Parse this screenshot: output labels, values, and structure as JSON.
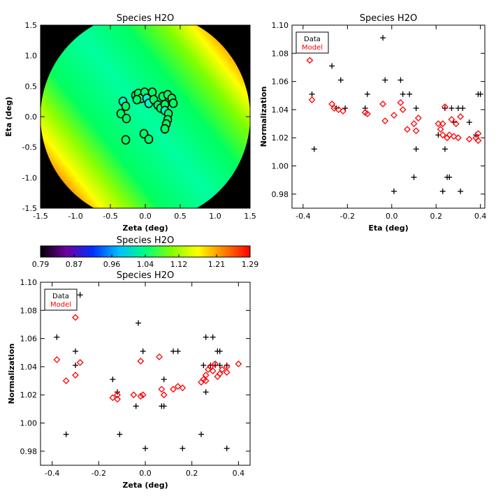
{
  "chart_data": [
    {
      "type": "heatmap",
      "title": "Species H2O",
      "xlabel": "Zeta (deg)",
      "ylabel": "Eta (deg)",
      "xlim": [
        -1.5,
        1.5
      ],
      "ylim": [
        -1.5,
        1.5
      ],
      "xticks": [
        "-1.5",
        "-1.0",
        "-0.5",
        "0.0",
        "0.5",
        "1.0",
        "1.5"
      ],
      "yticks": [
        "-1.5",
        "-1.0",
        "-0.5",
        "0.0",
        "0.5",
        "1.0",
        "1.5"
      ],
      "map_description": "circular map of radius 1.5 deg, green centre, red toward upper-right and lower-left edges",
      "points": [
        {
          "x": -0.32,
          "y": 0.25,
          "fill": "#00ffcc"
        },
        {
          "x": -0.28,
          "y": 0.17,
          "fill": "#00ff66"
        },
        {
          "x": -0.35,
          "y": 0.05,
          "fill": "#00ff66"
        },
        {
          "x": -0.27,
          "y": -0.03,
          "fill": "#00ff66"
        },
        {
          "x": -0.28,
          "y": -0.38,
          "fill": "#00ff66"
        },
        {
          "x": -0.14,
          "y": 0.35,
          "fill": "#00ff66"
        },
        {
          "x": -0.1,
          "y": 0.38,
          "fill": "#00ff66"
        },
        {
          "x": -0.06,
          "y": 0.3,
          "fill": "#00ffcc"
        },
        {
          "x": -0.12,
          "y": 0.28,
          "fill": "#00ff66"
        },
        {
          "x": -0.01,
          "y": 0.4,
          "fill": "#00ff66"
        },
        {
          "x": 0.02,
          "y": 0.3,
          "fill": "#00ffcc"
        },
        {
          "x": 0.05,
          "y": 0.22,
          "fill": "#00ffcc"
        },
        {
          "x": 0.1,
          "y": 0.4,
          "fill": "#00ff66"
        },
        {
          "x": 0.12,
          "y": 0.28,
          "fill": "#00ff66"
        },
        {
          "x": 0.18,
          "y": 0.19,
          "fill": "#00ff66"
        },
        {
          "x": 0.22,
          "y": 0.14,
          "fill": "#00ff66"
        },
        {
          "x": 0.25,
          "y": 0.33,
          "fill": "#00ff66"
        },
        {
          "x": 0.28,
          "y": 0.2,
          "fill": "#00ff66"
        },
        {
          "x": 0.32,
          "y": 0.36,
          "fill": "#00ff66"
        },
        {
          "x": 0.38,
          "y": 0.3,
          "fill": "#00ff66"
        },
        {
          "x": 0.4,
          "y": 0.22,
          "fill": "#00ff66"
        },
        {
          "x": 0.28,
          "y": 0.1,
          "fill": "#00ffcc"
        },
        {
          "x": 0.33,
          "y": 0.05,
          "fill": "#00ff66"
        },
        {
          "x": 0.32,
          "y": -0.05,
          "fill": "#00ff66"
        },
        {
          "x": 0.3,
          "y": -0.12,
          "fill": "#00ff66"
        },
        {
          "x": 0.28,
          "y": -0.2,
          "fill": "#00ff66"
        },
        {
          "x": -0.02,
          "y": -0.28,
          "fill": "#00ff66"
        },
        {
          "x": 0.05,
          "y": -0.37,
          "fill": "#00ff66"
        }
      ]
    },
    {
      "type": "colorbar",
      "title": "Species H2O",
      "range": [
        0.79,
        1.29
      ],
      "ticks": [
        "0.79",
        "0.87",
        "0.96",
        "1.04",
        "1.12",
        "1.21",
        "1.29"
      ],
      "colors": [
        "#000000",
        "#7000a0",
        "#0030ff",
        "#00c0ff",
        "#00ff80",
        "#80ff00",
        "#ffff00",
        "#ff8000",
        "#ff0000"
      ]
    },
    {
      "type": "scatter",
      "title": "Species H2O",
      "xlabel": "Eta (deg)",
      "ylabel": "Normalization",
      "xlim": [
        -0.45,
        0.42
      ],
      "ylim": [
        0.97,
        1.1
      ],
      "xticks": [
        "-0.4",
        "-0.2",
        "0.0",
        "0.2",
        "0.4"
      ],
      "yticks": [
        "0.98",
        "1.00",
        "1.02",
        "1.04",
        "1.06",
        "1.08",
        "1.10"
      ],
      "legend": {
        "position": "top-left",
        "entries": [
          {
            "label": "Data",
            "color": "#000000"
          },
          {
            "label": "Model",
            "color": "#ff0000"
          }
        ]
      },
      "series": [
        {
          "name": "Data",
          "marker": "plus",
          "color": "#000000",
          "points": [
            [
              -0.36,
              1.051
            ],
            [
              -0.35,
              1.012
            ],
            [
              -0.27,
              1.071
            ],
            [
              -0.25,
              1.041
            ],
            [
              -0.23,
              1.061
            ],
            [
              -0.21,
              1.041
            ],
            [
              -0.12,
              1.041
            ],
            [
              -0.11,
              1.051
            ],
            [
              -0.04,
              1.091
            ],
            [
              -0.03,
              1.061
            ],
            [
              0.01,
              0.982
            ],
            [
              0.04,
              1.061
            ],
            [
              0.05,
              1.051
            ],
            [
              0.08,
              1.051
            ],
            [
              0.1,
              0.992
            ],
            [
              0.11,
              1.041
            ],
            [
              0.11,
              1.012
            ],
            [
              0.21,
              1.022
            ],
            [
              0.23,
              0.982
            ],
            [
              0.24,
              1.012
            ],
            [
              0.24,
              1.041
            ],
            [
              0.25,
              0.992
            ],
            [
              0.26,
              0.992
            ],
            [
              0.27,
              1.041
            ],
            [
              0.28,
              1.031
            ],
            [
              0.3,
              1.041
            ],
            [
              0.31,
              0.982
            ],
            [
              0.32,
              1.041
            ],
            [
              0.35,
              1.031
            ],
            [
              0.38,
              1.022
            ],
            [
              0.39,
              1.051
            ],
            [
              0.4,
              1.051
            ]
          ]
        },
        {
          "name": "Model",
          "marker": "diamond",
          "color": "#ff0000",
          "points": [
            [
              -0.37,
              1.075
            ],
            [
              -0.36,
              1.047
            ],
            [
              -0.27,
              1.044
            ],
            [
              -0.26,
              1.041
            ],
            [
              -0.24,
              1.04
            ],
            [
              -0.22,
              1.039
            ],
            [
              -0.12,
              1.038
            ],
            [
              -0.11,
              1.037
            ],
            [
              -0.04,
              1.044
            ],
            [
              -0.03,
              1.032
            ],
            [
              0.01,
              1.036
            ],
            [
              0.04,
              1.045
            ],
            [
              0.05,
              1.04
            ],
            [
              0.07,
              1.026
            ],
            [
              0.1,
              1.03
            ],
            [
              0.11,
              1.025
            ],
            [
              0.12,
              1.034
            ],
            [
              0.21,
              1.03
            ],
            [
              0.22,
              1.026
            ],
            [
              0.23,
              1.022
            ],
            [
              0.23,
              1.03
            ],
            [
              0.24,
              1.042
            ],
            [
              0.25,
              1.02
            ],
            [
              0.26,
              1.022
            ],
            [
              0.27,
              1.033
            ],
            [
              0.28,
              1.021
            ],
            [
              0.29,
              1.03
            ],
            [
              0.3,
              1.02
            ],
            [
              0.31,
              1.035
            ],
            [
              0.35,
              1.019
            ],
            [
              0.38,
              1.02
            ],
            [
              0.39,
              1.023
            ],
            [
              0.39,
              1.018
            ]
          ]
        }
      ]
    },
    {
      "type": "scatter",
      "title": "Species H2O",
      "xlabel": "Zeta (deg)",
      "ylabel": "Normalization",
      "xlim": [
        -0.45,
        0.45
      ],
      "ylim": [
        0.97,
        1.1
      ],
      "xticks": [
        "-0.4",
        "-0.2",
        "0.0",
        "0.2",
        "0.4"
      ],
      "yticks": [
        "0.98",
        "1.00",
        "1.02",
        "1.04",
        "1.06",
        "1.08",
        "1.10"
      ],
      "legend": {
        "position": "top-left",
        "entries": [
          {
            "label": "Data",
            "color": "#000000"
          },
          {
            "label": "Model",
            "color": "#ff0000"
          }
        ]
      },
      "series": [
        {
          "name": "Data",
          "marker": "plus",
          "color": "#000000",
          "points": [
            [
              -0.38,
              1.061
            ],
            [
              -0.34,
              0.992
            ],
            [
              -0.3,
              1.051
            ],
            [
              -0.3,
              1.041
            ],
            [
              -0.28,
              1.091
            ],
            [
              -0.14,
              1.031
            ],
            [
              -0.12,
              1.022
            ],
            [
              -0.11,
              0.992
            ],
            [
              -0.04,
              1.012
            ],
            [
              -0.03,
              1.071
            ],
            [
              -0.01,
              1.051
            ],
            [
              0.0,
              0.982
            ],
            [
              0.07,
              1.012
            ],
            [
              0.08,
              1.012
            ],
            [
              0.08,
              1.031
            ],
            [
              0.12,
              1.051
            ],
            [
              0.14,
              1.051
            ],
            [
              0.16,
              0.982
            ],
            [
              0.24,
              0.992
            ],
            [
              0.25,
              1.041
            ],
            [
              0.26,
              1.022
            ],
            [
              0.26,
              1.061
            ],
            [
              0.28,
              1.041
            ],
            [
              0.29,
              1.061
            ],
            [
              0.3,
              1.041
            ],
            [
              0.31,
              1.051
            ],
            [
              0.32,
              1.051
            ],
            [
              0.32,
              1.041
            ],
            [
              0.35,
              1.041
            ],
            [
              0.35,
              0.982
            ]
          ]
        },
        {
          "name": "Model",
          "marker": "diamond",
          "color": "#ff0000",
          "points": [
            [
              -0.38,
              1.045
            ],
            [
              -0.34,
              1.03
            ],
            [
              -0.3,
              1.075
            ],
            [
              -0.3,
              1.034
            ],
            [
              -0.28,
              1.043
            ],
            [
              -0.14,
              1.018
            ],
            [
              -0.12,
              1.02
            ],
            [
              -0.12,
              1.017
            ],
            [
              -0.05,
              1.02
            ],
            [
              -0.02,
              1.019
            ],
            [
              -0.01,
              1.02
            ],
            [
              -0.02,
              1.044
            ],
            [
              0.06,
              1.047
            ],
            [
              0.07,
              1.024
            ],
            [
              0.08,
              1.02
            ],
            [
              0.12,
              1.024
            ],
            [
              0.14,
              1.026
            ],
            [
              0.16,
              1.025
            ],
            [
              0.24,
              1.029
            ],
            [
              0.25,
              1.031
            ],
            [
              0.26,
              1.034
            ],
            [
              0.26,
              1.03
            ],
            [
              0.27,
              1.038
            ],
            [
              0.28,
              1.04
            ],
            [
              0.29,
              1.037
            ],
            [
              0.3,
              1.042
            ],
            [
              0.31,
              1.033
            ],
            [
              0.32,
              1.035
            ],
            [
              0.33,
              1.038
            ],
            [
              0.35,
              1.036
            ],
            [
              0.35,
              1.04
            ],
            [
              0.4,
              1.042
            ]
          ]
        }
      ]
    }
  ]
}
